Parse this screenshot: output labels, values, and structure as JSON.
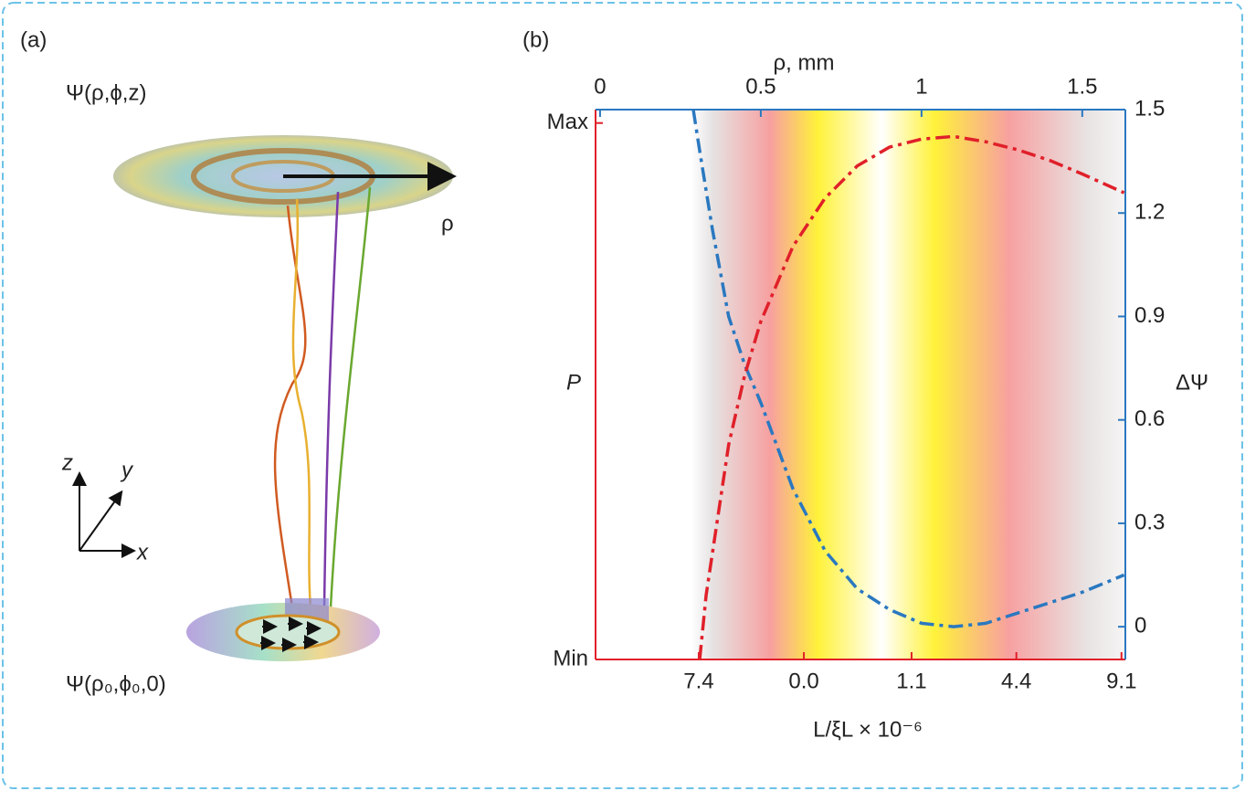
{
  "panel_a": {
    "label": "(a)",
    "top_field": "Ψ(ρ,ϕ,z)",
    "radius_label": "ρ",
    "axis_z": "z",
    "axis_y": "y",
    "axis_x": "x",
    "bottom_field": "Ψ(ρ₀,ϕ₀,0)"
  },
  "chart_data": {
    "type": "line",
    "panel_label": "(b)",
    "xlabel": "ρ, mm",
    "ylabel": "P",
    "y2label": "ΔΨ",
    "x2label": "L/ξL × 10⁻⁶",
    "xlim": [
      -0.014,
      1.634
    ],
    "xticks": [
      0,
      0.5,
      1,
      1.5
    ],
    "ylim": [
      0,
      1.025
    ],
    "yticks": [
      {
        "value": 0,
        "label": "Min"
      },
      {
        "value": 1,
        "label": "Max"
      }
    ],
    "y2lim": [
      -0.095,
      1.5
    ],
    "y2ticks": [
      0,
      0.3,
      0.6,
      0.9,
      1.2,
      1.5
    ],
    "x2tick_labels": [
      "7.4",
      "0.0",
      "1.1",
      "4.4",
      "9.1"
    ],
    "x2tick_at": [
      0.307,
      0.634,
      0.969,
      1.295,
      1.622
    ],
    "series": [
      {
        "name": "ΔΨ",
        "color": "#2a78c0",
        "axis": "y2",
        "x": [
          0.29,
          0.31,
          0.35,
          0.4,
          0.45,
          0.5,
          0.6,
          0.7,
          0.8,
          0.9,
          1.0,
          1.1,
          1.2,
          1.3,
          1.4,
          1.5,
          1.63
        ],
        "values": [
          1.5,
          1.38,
          1.15,
          0.9,
          0.76,
          0.65,
          0.4,
          0.22,
          0.11,
          0.05,
          0.01,
          0.0,
          0.01,
          0.04,
          0.07,
          0.1,
          0.15
        ]
      },
      {
        "name": "P",
        "color": "#e0202a",
        "x": [
          0.31,
          0.33,
          0.36,
          0.4,
          0.45,
          0.5,
          0.6,
          0.7,
          0.8,
          0.9,
          1.0,
          1.1,
          1.2,
          1.3,
          1.4,
          1.5,
          1.63
        ],
        "values": [
          0,
          0.12,
          0.24,
          0.4,
          0.53,
          0.63,
          0.77,
          0.86,
          0.92,
          0.955,
          0.97,
          0.975,
          0.965,
          0.95,
          0.93,
          0.905,
          0.87
        ]
      }
    ]
  }
}
